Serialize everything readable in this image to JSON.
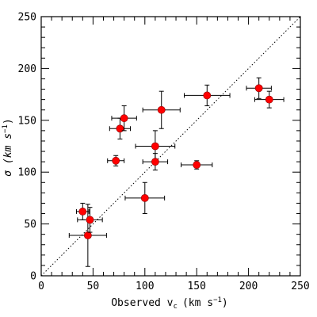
{
  "chart_data": {
    "type": "scatter",
    "xlabel_main": "Observed v",
    "xlabel_sub": "c",
    "xlabel_units": "(km s",
    "xlabel_exp": "−1",
    "xlabel_close": ")",
    "ylabel_main": "σ (km s",
    "ylabel_exp": "−1",
    "ylabel_close": ")",
    "xlim": [
      0,
      250
    ],
    "ylim": [
      0,
      250
    ],
    "xticks": [
      0,
      50,
      100,
      150,
      200,
      250
    ],
    "yticks": [
      0,
      50,
      100,
      150,
      200,
      250
    ],
    "xtick_labels": [
      "0",
      "50",
      "100",
      "150",
      "200",
      "250"
    ],
    "ytick_labels": [
      "0",
      "50",
      "100",
      "150",
      "200",
      "250"
    ],
    "reference_line": "y = x",
    "grid": false,
    "point_color": "#ff0000",
    "points": [
      {
        "x": 40,
        "y": 62,
        "xerr": 6,
        "yerr": 8
      },
      {
        "x": 45,
        "y": 39,
        "xerr": 18,
        "yerr": 30
      },
      {
        "x": 47,
        "y": 54,
        "xerr": 12,
        "yerr": 12
      },
      {
        "x": 72,
        "y": 111,
        "xerr": 8,
        "yerr": 5
      },
      {
        "x": 76,
        "y": 142,
        "xerr": 10,
        "yerr": 10
      },
      {
        "x": 80,
        "y": 152,
        "xerr": 12,
        "yerr": 12
      },
      {
        "x": 100,
        "y": 75,
        "xerr": 19,
        "yerr": 15
      },
      {
        "x": 110,
        "y": 125,
        "xerr": 19,
        "yerr": 15
      },
      {
        "x": 110,
        "y": 110,
        "xerr": 12,
        "yerr": 8
      },
      {
        "x": 116,
        "y": 160,
        "xerr": 18,
        "yerr": 18
      },
      {
        "x": 150,
        "y": 107,
        "xerr": 15,
        "yerr": 4
      },
      {
        "x": 160,
        "y": 174,
        "xerr": 22,
        "yerr": 10
      },
      {
        "x": 210,
        "y": 181,
        "xerr": 12,
        "yerr": 10
      },
      {
        "x": 220,
        "y": 170,
        "xerr": 14,
        "yerr": 8
      }
    ]
  }
}
